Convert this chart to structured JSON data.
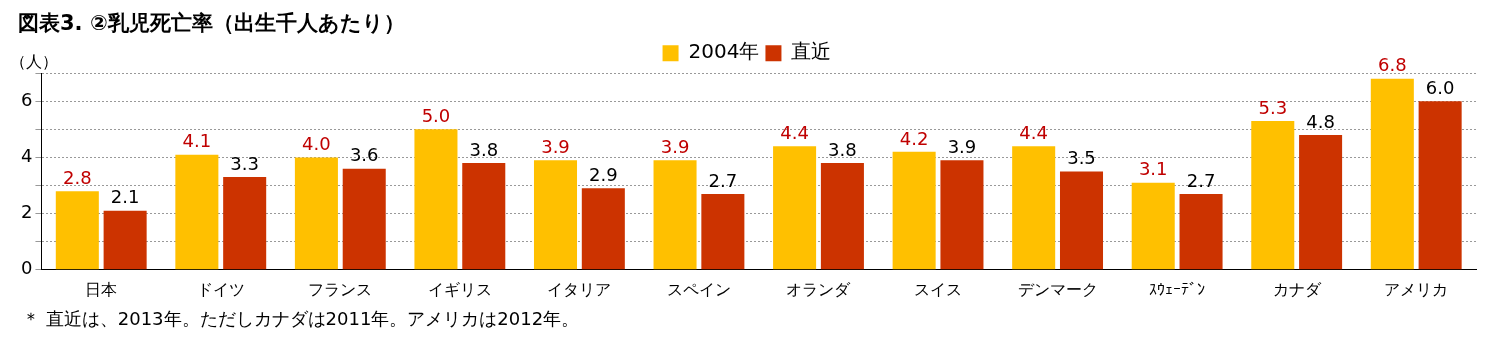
{
  "chart_data": {
    "type": "bar",
    "title": "図表3. ②乳児死亡率（出生千人あたり）",
    "ylabel": "（人）",
    "categories": [
      "日本",
      "ドイツ",
      "フランス",
      "イギリス",
      "イタリア",
      "スペイン",
      "オランダ",
      "スイス",
      "デンマーク",
      "ｽｳｪｰﾃﾞﾝ",
      "カナダ",
      "アメリカ"
    ],
    "series": [
      {
        "name": "2004年",
        "color": "#ffc000",
        "values": [
          2.8,
          4.1,
          4.0,
          5.0,
          3.9,
          3.9,
          4.4,
          4.2,
          4.4,
          3.1,
          5.3,
          6.8
        ],
        "value_labels": [
          "2.8",
          "4.1",
          "4.0",
          "5.0",
          "3.9",
          "3.9",
          "4.4",
          "4.2",
          "4.4",
          "3.1",
          "5.3",
          "6.8"
        ]
      },
      {
        "name": "直近",
        "color": "#cc3300",
        "values": [
          2.1,
          3.3,
          3.6,
          3.8,
          2.9,
          2.7,
          3.8,
          3.9,
          3.5,
          2.7,
          4.8,
          6.0
        ],
        "value_labels": [
          "2.1",
          "3.3",
          "3.6",
          "3.8",
          "2.9",
          "2.7",
          "3.8",
          "3.9",
          "3.5",
          "2.7",
          "4.8",
          "6.0"
        ]
      }
    ],
    "ylim": [
      0,
      7
    ],
    "yticks": [
      0,
      {
        "value": 1,
        "label": null
      },
      2,
      {
        "value": 3,
        "label": null
      },
      4,
      {
        "value": 5,
        "label": null
      },
      6,
      {
        "value": 7,
        "label": null
      }
    ],
    "grid": "y",
    "legend": "top",
    "annotations": [
      "＊ 直近は、2013年。ただしカナダは2011年。アメリカは2012年。"
    ]
  }
}
